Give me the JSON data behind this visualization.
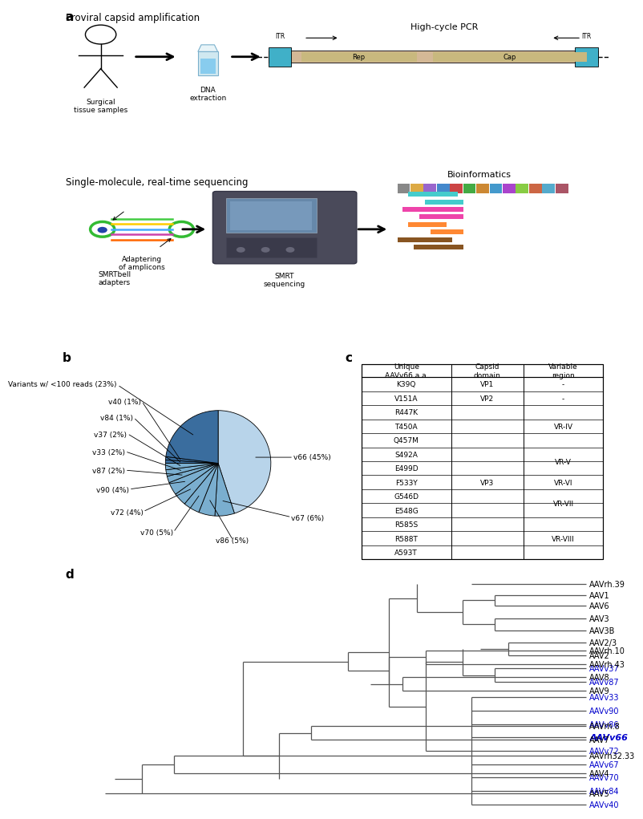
{
  "pie_labels": [
    "v66 (45%)",
    "v67 (6%)",
    "v86 (5%)",
    "v70 (5%)",
    "v72 (4%)",
    "v90 (4%)",
    "v87 (2%)",
    "v33 (2%)",
    "v37 (2%)",
    "v84 (1%)",
    "v40 (1%)",
    "Variants w/ <100 reads (23%)"
  ],
  "pie_values": [
    45,
    6,
    5,
    5,
    4,
    4,
    2,
    2,
    2,
    1,
    1,
    23
  ],
  "pie_colors_list": [
    "#b8d4ea",
    "#7aaecf",
    "#7aaecf",
    "#7aaecf",
    "#7aaecf",
    "#7aaecf",
    "#7aaecf",
    "#7aaecf",
    "#7aaecf",
    "#3a6d9e",
    "#3a6d9e",
    "#3a6d9e"
  ],
  "table_rows": [
    [
      "K39Q",
      "VP1",
      "-"
    ],
    [
      "V151A",
      "VP2",
      "-"
    ],
    [
      "R447K",
      "",
      ""
    ],
    [
      "T450A",
      "",
      "VR-IV"
    ],
    [
      "Q457M",
      "",
      ""
    ],
    [
      "S492A",
      "",
      ""
    ],
    [
      "E499D",
      "",
      "VR-V"
    ],
    [
      "F533Y",
      "VP3",
      "VR-VI"
    ],
    [
      "G546D",
      "",
      ""
    ],
    [
      "E548G",
      "",
      "VR-VII"
    ],
    [
      "R585S",
      "",
      ""
    ],
    [
      "R588T",
      "",
      "VR-VIII"
    ],
    [
      "A593T",
      "",
      ""
    ]
  ],
  "table_headers": [
    "Unique\nAAVv66 a.a.",
    "Capsid\ndomain",
    "Variable\nregion"
  ],
  "panel_labels": [
    "a",
    "b",
    "c",
    "d"
  ],
  "proviral_title": "Proviral capsid amplification",
  "smrt_title": "Single-molecule, real-time sequencing",
  "hicycle_label": "High-cycle PCR",
  "surgical_label": "Surgical\ntissue samples",
  "dna_label": "DNA\nextraction",
  "smrt_label": "SMRT\nsequencing",
  "bio_label": "Bioinformatics",
  "adaptering_label": "Adaptering\nof amplicons",
  "smrtbell_label": "SMRTbell\nadapters",
  "tree_color": "#555555",
  "blue_color": "#0000cc",
  "itr_color": "#40b0c8",
  "genome_color": "#d4b896",
  "vr_regions": [
    [
      "VR-IV",
      2,
      4
    ],
    [
      "VR-V",
      5,
      6
    ],
    [
      "VR-VI",
      7,
      7
    ],
    [
      "VR-VII",
      8,
      9
    ],
    [
      "VR-VIII",
      10,
      12
    ]
  ]
}
